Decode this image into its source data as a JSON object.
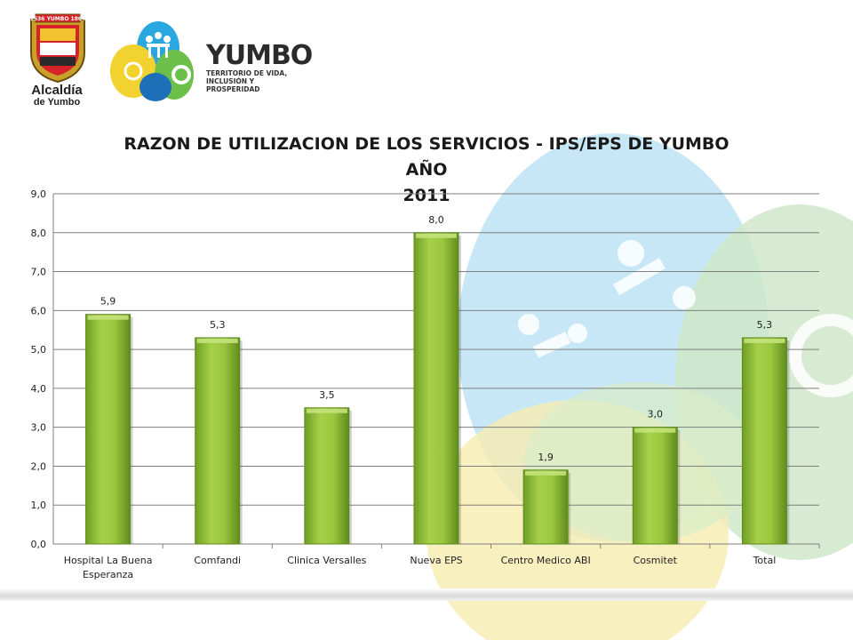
{
  "header": {
    "crest_text": "1536 YUMBO 1864",
    "municipality_line1": "Alcaldía",
    "municipality_line2": "de Yumbo",
    "brand_name": "YUMBO",
    "brand_tagline_line1": "TERRITORIO DE VIDA,",
    "brand_tagline_line2": "INCLUSIÓN Y PROSPERIDAD"
  },
  "colors": {
    "bar_fill": "#8ab832",
    "bar_highlight": "#c4e27a",
    "bar_shadow": "#5d8a1e",
    "grid": "#7f7f7f",
    "label": "#222222"
  },
  "chart_data": {
    "type": "bar",
    "title": "RAZON DE UTILIZACION DE LOS SERVICIOS - IPS/EPS DE YUMBO AÑO 2011",
    "title_lines": [
      "RAZON DE UTILIZACION DE LOS SERVICIOS - IPS/EPS DE YUMBO AÑO",
      "2011"
    ],
    "categories": [
      [
        "Hospital La Buena",
        "Esperanza"
      ],
      [
        "Comfandi"
      ],
      [
        "Clinica Versalles"
      ],
      [
        "Nueva EPS"
      ],
      [
        "Centro Medico ABI"
      ],
      [
        "Cosmitet"
      ],
      [
        "Total"
      ]
    ],
    "values": [
      5.9,
      5.3,
      3.5,
      8.0,
      1.9,
      3.0,
      5.3
    ],
    "value_labels": [
      "5,9",
      "5,3",
      "3,5",
      "8,0",
      "1,9",
      "3,0",
      "5,3"
    ],
    "yticks": [
      0,
      1,
      2,
      3,
      4,
      5,
      6,
      7,
      8,
      9
    ],
    "ytick_labels": [
      "0,0",
      "1,0",
      "2,0",
      "3,0",
      "4,0",
      "5,0",
      "6,0",
      "7,0",
      "8,0",
      "9,0"
    ],
    "ylim": [
      0,
      9
    ],
    "xlabel": "",
    "ylabel": "",
    "grid": true,
    "legend": "none"
  }
}
